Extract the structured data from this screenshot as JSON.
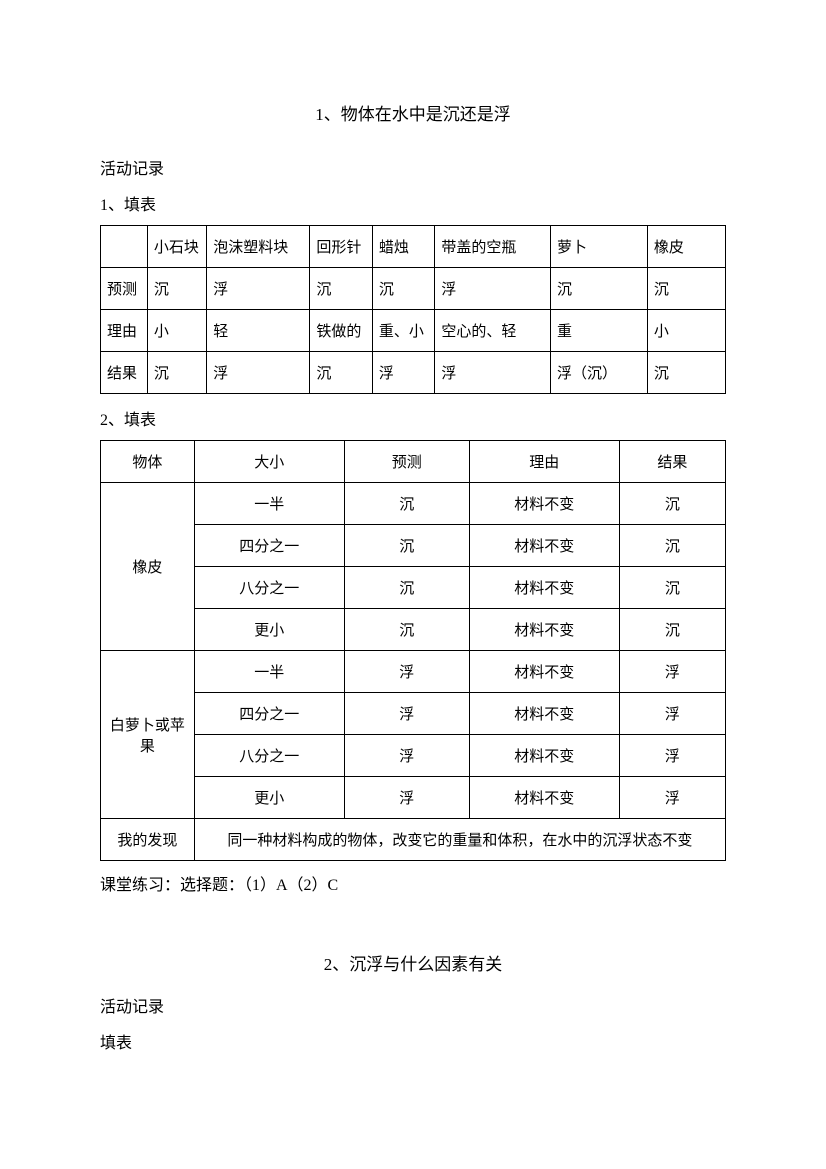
{
  "section1": {
    "title": "1、物体在水中是沉还是浮",
    "activity_label": "活动记录",
    "sub1": "1、填表",
    "sub2": "2、填表",
    "table1": {
      "columns": [
        "",
        "小石块",
        "泡沫塑料块",
        "回形针",
        "蜡烛",
        "带盖的空瓶",
        "萝卜",
        "橡皮"
      ],
      "col_widths_pct": [
        7.5,
        9.5,
        16.5,
        10,
        10,
        18.5,
        15.5,
        12.5
      ],
      "rows": [
        [
          "预测",
          "沉",
          "浮",
          "沉",
          "沉",
          "浮",
          "沉",
          "沉"
        ],
        [
          "理由",
          "小",
          "轻",
          "铁做的",
          "重、小",
          "空心的、轻",
          "重",
          "小"
        ],
        [
          "结果",
          "沉",
          "浮",
          "沉",
          "浮",
          "浮",
          "浮（沉）",
          "沉"
        ]
      ]
    },
    "table2": {
      "columns": [
        "物体",
        "大小",
        "预测",
        "理由",
        "结果"
      ],
      "col_widths_pct": [
        15,
        24,
        20,
        24,
        17
      ],
      "groups": [
        {
          "label": "橡皮",
          "rows": [
            [
              "一半",
              "沉",
              "材料不变",
              "沉"
            ],
            [
              "四分之一",
              "沉",
              "材料不变",
              "沉"
            ],
            [
              "八分之一",
              "沉",
              "材料不变",
              "沉"
            ],
            [
              "更小",
              "沉",
              "材料不变",
              "沉"
            ]
          ]
        },
        {
          "label": "白萝卜或苹果",
          "rows": [
            [
              "一半",
              "浮",
              "材料不变",
              "浮"
            ],
            [
              "四分之一",
              "浮",
              "材料不变",
              "浮"
            ],
            [
              "八分之一",
              "浮",
              "材料不变",
              "浮"
            ],
            [
              "更小",
              "浮",
              "材料不变",
              "浮"
            ]
          ]
        }
      ],
      "finding_label": "我的发现",
      "finding_text": "同一种材料构成的物体，改变它的重量和体积，在水中的沉浮状态不变"
    },
    "practice": "课堂练习：选择题：（1）A（2）C"
  },
  "section2": {
    "title": "2、沉浮与什么因素有关",
    "activity_label": "活动记录",
    "sub1": "填表"
  }
}
